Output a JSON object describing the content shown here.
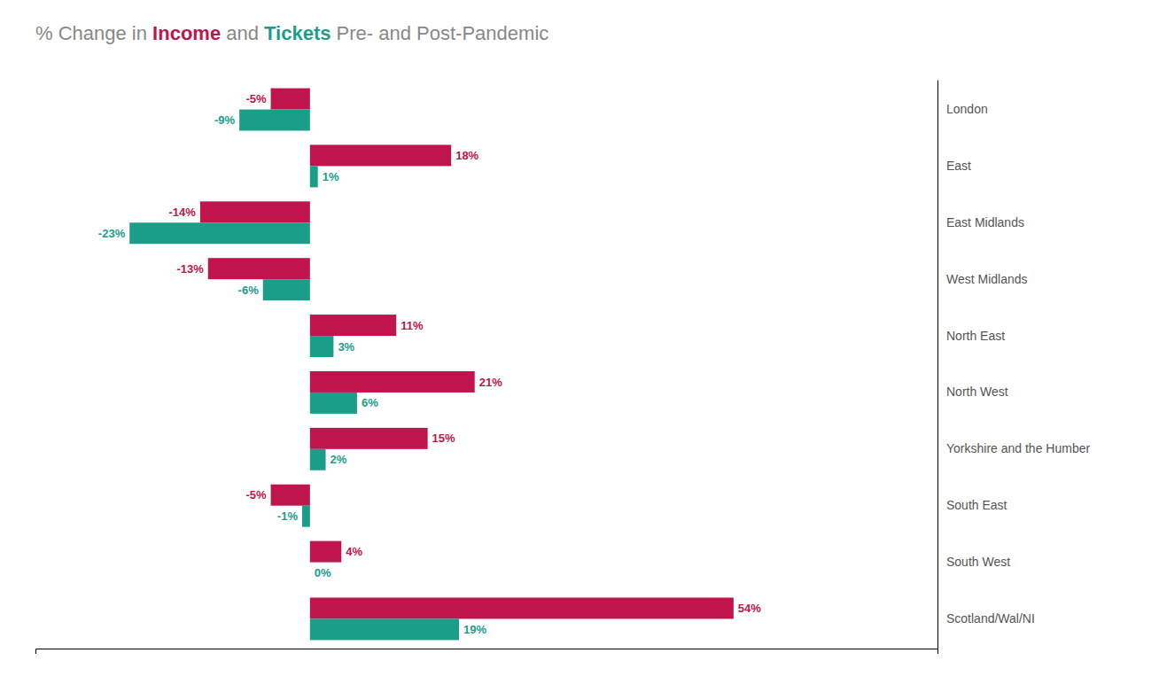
{
  "chart_data": {
    "type": "bar",
    "orientation": "horizontal",
    "title": "% Change in Income and Tickets Pre- and Post-Pandemic",
    "categories": [
      "London",
      "East",
      "East Midlands",
      "West Midlands",
      "North East",
      "North West",
      "Yorkshire and the Humber",
      "South East",
      "South West",
      "Scotland/Wal/NI"
    ],
    "series": [
      {
        "name": "Income",
        "color": "#c0144c",
        "values": [
          -5,
          18,
          -14,
          -13,
          11,
          21,
          15,
          -5,
          4,
          54
        ],
        "value_labels": [
          "-5%",
          "18%",
          "-14%",
          "-13%",
          "11%",
          "21%",
          "15%",
          "-5%",
          "4%",
          "54%"
        ]
      },
      {
        "name": "Tickets",
        "color": "#1a9e8a",
        "values": [
          -9,
          1,
          -23,
          -6,
          3,
          6,
          2,
          -1,
          0,
          19
        ],
        "value_labels": [
          "-9%",
          "1%",
          "-23%",
          "-6%",
          "3%",
          "6%",
          "2%",
          "-1%",
          "0%",
          "19%"
        ]
      }
    ],
    "xlim": [
      -35,
      80
    ],
    "xticks": [],
    "tick_labels": false,
    "data_labels": true
  }
}
